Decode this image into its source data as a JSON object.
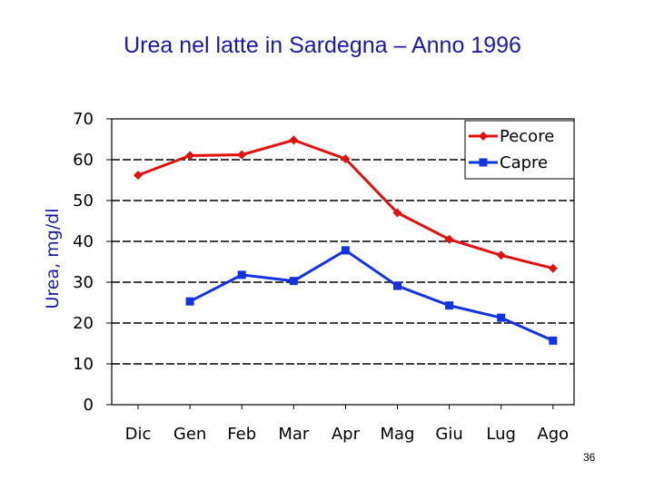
{
  "slide": {
    "title": "Urea nel latte in Sardegna – Anno 1996",
    "page_number": "36"
  },
  "colors": {
    "title": "#1a1aa6",
    "pecore": "#e0110f",
    "capre": "#1433e0"
  },
  "chart_data": {
    "type": "line",
    "title": "Urea nel latte in Sardegna – Anno 1996",
    "xlabel": "",
    "ylabel": "Urea, mg/dl",
    "ylim": [
      0,
      70
    ],
    "yticks": [
      "0",
      "10",
      "20",
      "30",
      "40",
      "50",
      "60",
      "70"
    ],
    "categories": [
      "Dic",
      "Gen",
      "Feb",
      "Mar",
      "Apr",
      "Mag",
      "Giu",
      "Lug",
      "Ago"
    ],
    "grid": "dashed horizontal",
    "legend_position": "top-right",
    "series": [
      {
        "name": "Pecore",
        "marker": "diamond",
        "values": [
          56.2,
          61.0,
          61.2,
          64.8,
          60.2,
          47.0,
          40.5,
          36.6,
          33.4
        ]
      },
      {
        "name": "Capre",
        "marker": "square",
        "values": [
          null,
          25.3,
          31.8,
          30.3,
          37.8,
          29.1,
          24.3,
          21.3,
          15.7
        ]
      }
    ]
  }
}
